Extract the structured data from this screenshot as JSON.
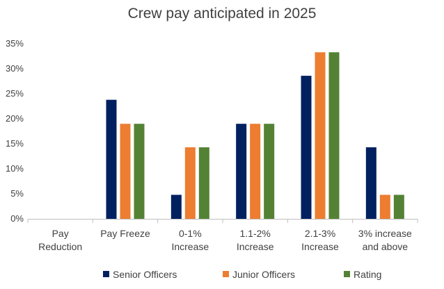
{
  "chart_data": {
    "type": "bar",
    "title": "Crew pay anticipated in 2025",
    "xlabel": "",
    "ylabel": "",
    "ylim": [
      0,
      35
    ],
    "yticks": [
      "0%",
      "5%",
      "10%",
      "15%",
      "20%",
      "25%",
      "30%",
      "35%"
    ],
    "categories": [
      [
        "Pay",
        "Reduction"
      ],
      [
        "Pay Freeze"
      ],
      [
        "0-1%",
        "Increase"
      ],
      [
        "1.1-2%",
        "Increase"
      ],
      [
        "2.1-3%",
        "Increase"
      ],
      [
        "3% increase",
        "and above"
      ]
    ],
    "series": [
      {
        "name": "Senior Officers",
        "color": "#002060",
        "values": [
          0,
          23.8,
          4.8,
          19.0,
          28.6,
          14.3
        ]
      },
      {
        "name": "Junior Officers",
        "color": "#ED7D31",
        "values": [
          0,
          19.0,
          14.3,
          19.0,
          33.3,
          4.8
        ]
      },
      {
        "name": "Rating",
        "color": "#548235",
        "values": [
          0,
          19.0,
          14.3,
          19.0,
          33.3,
          4.8
        ]
      }
    ],
    "grid": false,
    "legend_position": "bottom"
  }
}
